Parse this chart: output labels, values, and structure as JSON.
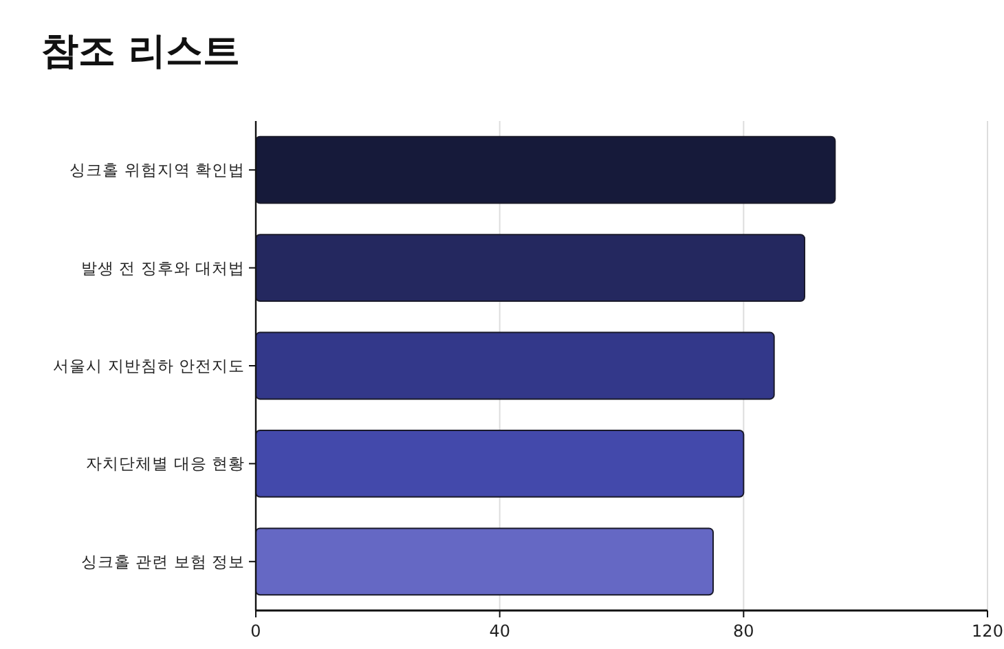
{
  "chart_data": {
    "type": "bar",
    "orientation": "horizontal",
    "title": "참조 리스트",
    "categories": [
      "싱크홀 위험지역 확인법",
      "발생 전 징후와 대처법",
      "서울시 지반침하 안전지도",
      "자치단체별 대응 현황",
      "싱크홀 관련 보험 정보"
    ],
    "values": [
      95,
      90,
      85,
      80,
      75
    ],
    "colors": [
      "#161a3a",
      "#24285f",
      "#33388a",
      "#4349ab",
      "#6568c4"
    ],
    "xlim": [
      0,
      120
    ],
    "xticks": [
      0,
      40,
      80,
      120
    ],
    "grid": "x"
  }
}
